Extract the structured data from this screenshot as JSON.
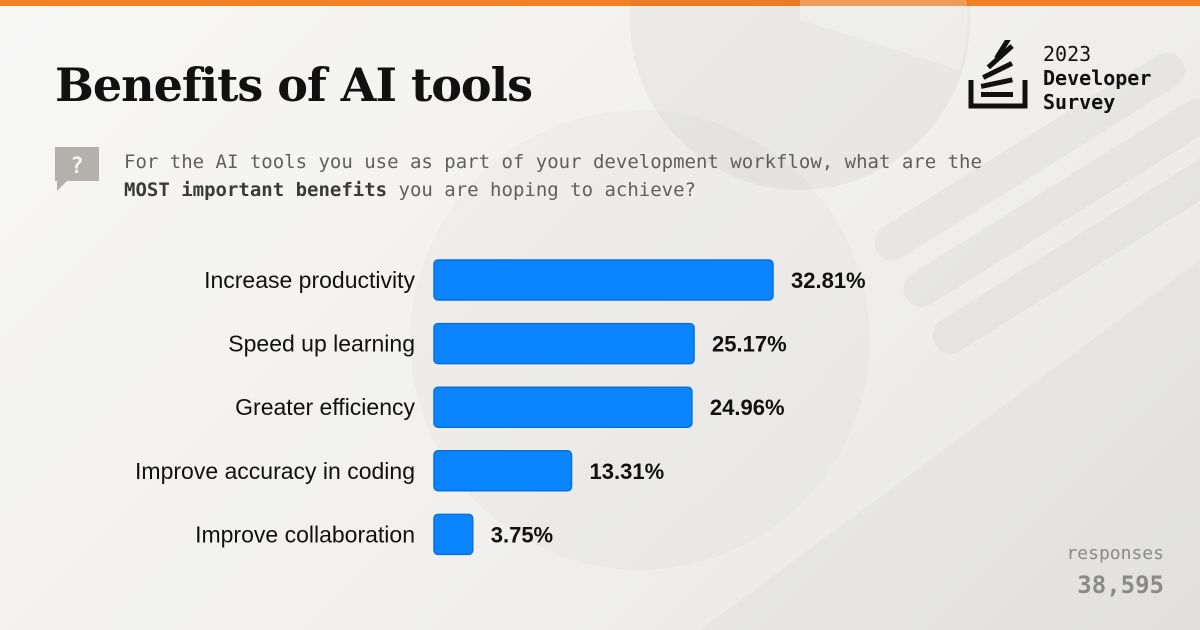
{
  "page": {
    "title": "Benefits of AI tools",
    "accent_color": "#f48024",
    "bar_color": "#0a84ff"
  },
  "brand": {
    "year": "2023",
    "line1": "Developer",
    "line2": "Survey",
    "logo_icon": "stack-overflow-logo-icon"
  },
  "question": {
    "icon": "question-mark-icon",
    "text_part1": "For the AI tools you use as part of your development workflow, what are the ",
    "text_emphasis": "MOST important benefits",
    "text_part2": " you are hoping to achieve?"
  },
  "responses": {
    "label": "responses",
    "value": "38,595"
  },
  "chart_data": {
    "type": "bar",
    "orientation": "horizontal",
    "categories": [
      "Increase productivity",
      "Speed up learning",
      "Greater efficiency",
      "Improve accuracy in coding",
      "Improve collaboration"
    ],
    "values": [
      32.81,
      25.17,
      24.96,
      13.31,
      3.75
    ],
    "value_labels": [
      "32.81%",
      "25.17%",
      "24.96%",
      "13.31%",
      "3.75%"
    ],
    "xlim": [
      0,
      32.81
    ],
    "grid": false
  }
}
